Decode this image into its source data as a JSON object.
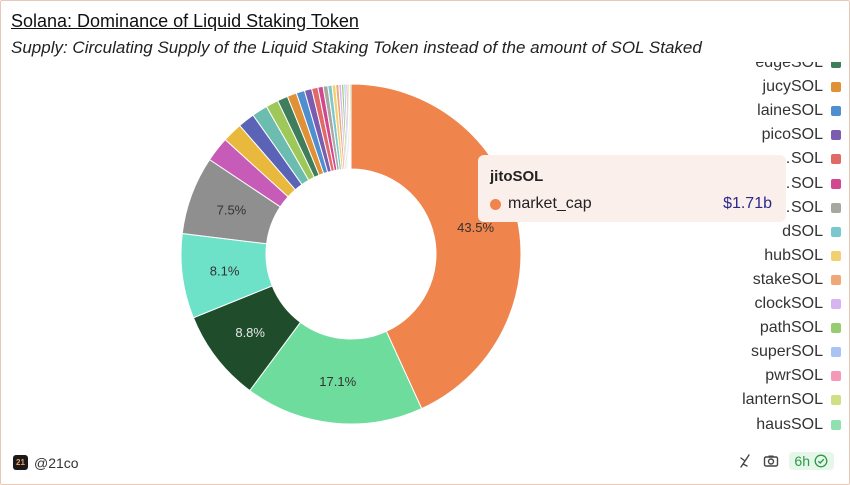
{
  "header": {
    "title": "Solana: Dominance of Liquid Staking Token",
    "subtitle": "Supply: Circulating Supply of the Liquid Staking Token instead of the amount of SOL Staked"
  },
  "chart_data": {
    "type": "pie",
    "donut": true,
    "slices": [
      {
        "value": 43.5,
        "label": "43.5%",
        "color": "#ef844c"
      },
      {
        "value": 17.1,
        "label": "17.1%",
        "color": "#6ddc9c"
      },
      {
        "value": 8.8,
        "label": "8.8%",
        "color": "#1f4d2c"
      },
      {
        "value": 8.1,
        "label": "8.1%",
        "color": "#6ee2c8"
      },
      {
        "value": 7.5,
        "label": "7.5%",
        "color": "#8f8f8f"
      },
      {
        "value": 2.4,
        "label": "",
        "color": "#c75cb8"
      },
      {
        "value": 1.9,
        "label": "",
        "color": "#e8b93c"
      },
      {
        "value": 1.6,
        "label": "",
        "color": "#5a63b5"
      },
      {
        "value": 1.5,
        "label": "",
        "color": "#6cbcb0"
      },
      {
        "value": 1.2,
        "label": "",
        "color": "#9fc85a"
      },
      {
        "value": 1.0,
        "label": "",
        "color": "#3f7d5c"
      },
      {
        "value": 0.9,
        "label": "",
        "color": "#e09035"
      },
      {
        "value": 0.8,
        "label": "",
        "color": "#4f8fd0"
      },
      {
        "value": 0.7,
        "label": "",
        "color": "#7a5cb0"
      },
      {
        "value": 0.6,
        "label": "",
        "color": "#e06a66"
      },
      {
        "value": 0.5,
        "label": "",
        "color": "#d2488e"
      },
      {
        "value": 0.45,
        "label": "",
        "color": "#a8a8a0"
      },
      {
        "value": 0.4,
        "label": "",
        "color": "#7cc8cf"
      },
      {
        "value": 0.35,
        "label": "",
        "color": "#f0d070"
      },
      {
        "value": 0.3,
        "label": "",
        "color": "#f0a878"
      },
      {
        "value": 0.25,
        "label": "",
        "color": "#d8b4f0"
      },
      {
        "value": 0.22,
        "label": "",
        "color": "#98cc70"
      },
      {
        "value": 0.2,
        "label": "",
        "color": "#a8c4f4"
      },
      {
        "value": 0.18,
        "label": "",
        "color": "#f49ab8"
      },
      {
        "value": 0.16,
        "label": "",
        "color": "#d0e080"
      },
      {
        "value": 0.14,
        "label": "",
        "color": "#90e0b0"
      }
    ]
  },
  "legend": {
    "items": [
      {
        "label": "edgeSOL",
        "color": "#3f7d5c"
      },
      {
        "label": "jucySOL",
        "color": "#e09035"
      },
      {
        "label": "laineSOL",
        "color": "#4f8fd0"
      },
      {
        "label": "picoSOL",
        "color": "#7a5cb0"
      },
      {
        "label": "…SOL",
        "color": "#e06a66"
      },
      {
        "label": "…SOL",
        "color": "#d2488e"
      },
      {
        "label": "…SOL",
        "color": "#a8a8a0"
      },
      {
        "label": "dSOL",
        "color": "#7cc8cf"
      },
      {
        "label": "hubSOL",
        "color": "#f0d070"
      },
      {
        "label": "stakeSOL",
        "color": "#f0a878"
      },
      {
        "label": "clockSOL",
        "color": "#d8b4f0"
      },
      {
        "label": "pathSOL",
        "color": "#98cc70"
      },
      {
        "label": "superSOL",
        "color": "#a8c4f4"
      },
      {
        "label": "pwrSOL",
        "color": "#f49ab8"
      },
      {
        "label": "lanternSOL",
        "color": "#d0e080"
      },
      {
        "label": "hausSOL",
        "color": "#90e0b0"
      }
    ]
  },
  "tooltip": {
    "title": "jitoSOL",
    "series_label": "market_cap",
    "value": "$1.71b",
    "dot_color": "#ef844c"
  },
  "footer": {
    "logo_text": "21",
    "handle": "@21co",
    "refresh_badge": "6h"
  }
}
